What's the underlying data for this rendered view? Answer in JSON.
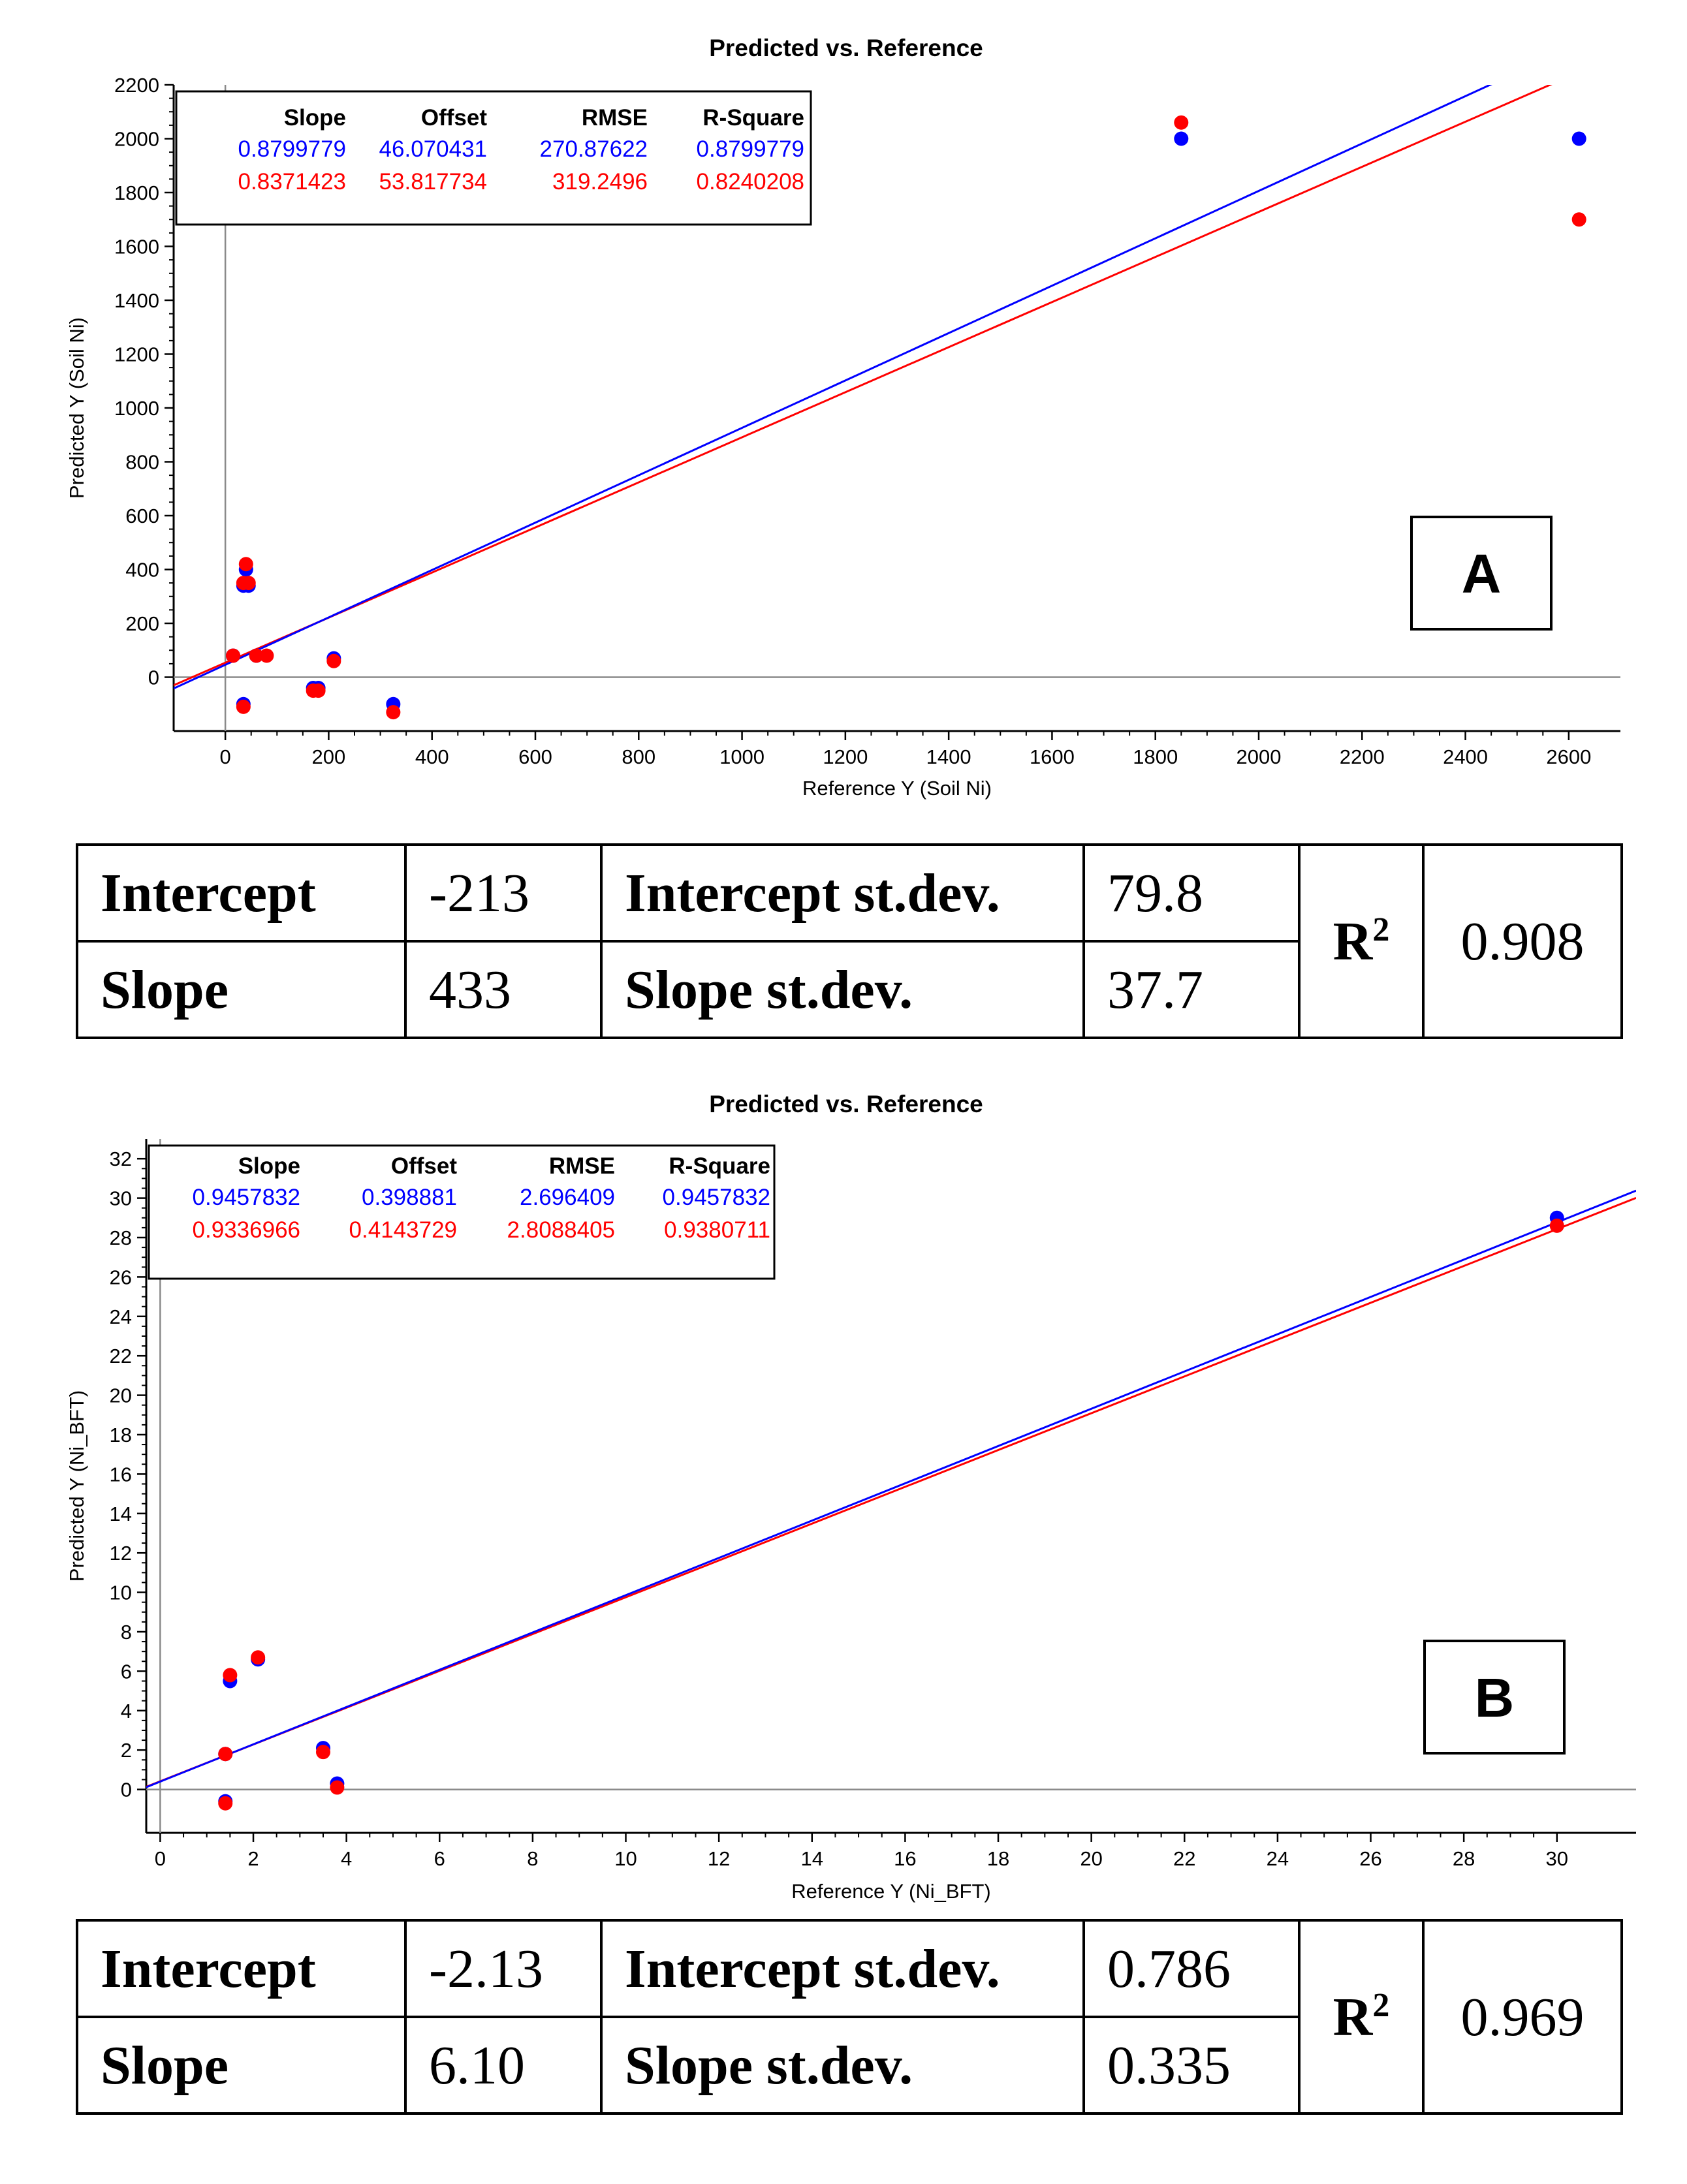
{
  "chart_data": [
    {
      "type": "scatter",
      "title": "Predicted vs. Reference",
      "xlabel": "Reference Y (Soil Ni)",
      "ylabel": "Predicted Y (Soil Ni)",
      "xlim": [
        -100,
        2700
      ],
      "ylim": [
        -200,
        2200
      ],
      "xticks": [
        0,
        200,
        400,
        600,
        800,
        1000,
        1200,
        1400,
        1600,
        1800,
        2000,
        2200,
        2400,
        2600
      ],
      "yticks": [
        0,
        200,
        400,
        600,
        800,
        1000,
        1200,
        1400,
        1600,
        1800,
        2000,
        2200
      ],
      "badge": "A",
      "legend": {
        "headers": [
          "Slope",
          "Offset",
          "RMSE",
          "R-Square"
        ],
        "rows": [
          {
            "color": "#0000ff",
            "values": [
              "0.8799779",
              "46.070431",
              "270.87622",
              "0.8799779"
            ]
          },
          {
            "color": "#ff0000",
            "values": [
              "0.8371423",
              "53.817734",
              "319.2496",
              "0.8240208"
            ]
          }
        ]
      },
      "series": [
        {
          "color": "#0000ff",
          "line": {
            "slope": 0.8799779,
            "offset": 46.070431,
            "x_end": 2460
          },
          "x": [
            15,
            35,
            35,
            40,
            45,
            60,
            170,
            180,
            210,
            325,
            1850,
            2620
          ],
          "y": [
            80,
            -100,
            340,
            400,
            340,
            80,
            -40,
            -40,
            70,
            -100,
            2000,
            2000
          ]
        },
        {
          "color": "#ff0000",
          "line": {
            "slope": 0.8371423,
            "offset": 53.817734,
            "x_end": 2620
          },
          "x": [
            15,
            35,
            35,
            40,
            45,
            60,
            80,
            170,
            180,
            210,
            325,
            1850,
            2620
          ],
          "y": [
            80,
            -110,
            350,
            420,
            350,
            80,
            80,
            -50,
            -50,
            60,
            -130,
            2060,
            1700
          ]
        }
      ]
    },
    {
      "type": "scatter",
      "title": "Predicted vs. Reference",
      "xlabel": "Reference Y (Ni_BFT)",
      "ylabel": "Predicted Y (Ni_BFT)",
      "xlim": [
        -0.3,
        31.7
      ],
      "ylim": [
        -2.2,
        33
      ],
      "xticks": [
        0,
        2,
        4,
        6,
        8,
        10,
        12,
        14,
        16,
        18,
        20,
        22,
        24,
        26,
        28,
        30
      ],
      "yticks": [
        0,
        2,
        4,
        6,
        8,
        10,
        12,
        14,
        16,
        18,
        20,
        22,
        24,
        26,
        28,
        30,
        32
      ],
      "badge": "B",
      "legend": {
        "headers": [
          "Slope",
          "Offset",
          "RMSE",
          "R-Square"
        ],
        "rows": [
          {
            "color": "#0000ff",
            "values": [
              "0.9457832",
              "0.398881",
              "2.696409",
              "0.9457832"
            ]
          },
          {
            "color": "#ff0000",
            "values": [
              "0.9336966",
              "0.4143729",
              "2.8088405",
              "0.9380711"
            ]
          }
        ]
      },
      "series": [
        {
          "color": "#0000ff",
          "line": {
            "slope": 0.9457832,
            "offset": 0.398881,
            "x_end": 31.7
          },
          "x": [
            1.4,
            1.4,
            1.5,
            2.1,
            3.5,
            3.8,
            30
          ],
          "y": [
            -0.6,
            1.8,
            5.5,
            6.6,
            2.1,
            0.3,
            29
          ]
        },
        {
          "color": "#ff0000",
          "line": {
            "slope": 0.9336966,
            "offset": 0.4143729,
            "x_end": 31.7
          },
          "x": [
            1.4,
            1.4,
            1.5,
            2.1,
            3.5,
            3.8,
            30
          ],
          "y": [
            -0.7,
            1.8,
            5.8,
            6.7,
            1.9,
            0.1,
            28.6
          ]
        }
      ]
    }
  ],
  "tables": [
    {
      "intercept_label": "Intercept",
      "intercept": "-213",
      "intercept_sd_label": "Intercept st.dev.",
      "intercept_sd": "79.8",
      "slope_label": "Slope",
      "slope": "433",
      "slope_sd_label": "Slope st.dev.",
      "slope_sd": "37.7",
      "r2_label": "R",
      "r2_sup": "2",
      "r2": "0.908"
    },
    {
      "intercept_label": "Intercept",
      "intercept": "-2.13",
      "intercept_sd_label": "Intercept st.dev.",
      "intercept_sd": "0.786",
      "slope_label": "Slope",
      "slope": "6.10",
      "slope_sd_label": "Slope st.dev.",
      "slope_sd": "0.335",
      "r2_label": "R",
      "r2_sup": "2",
      "r2": "0.969"
    }
  ]
}
